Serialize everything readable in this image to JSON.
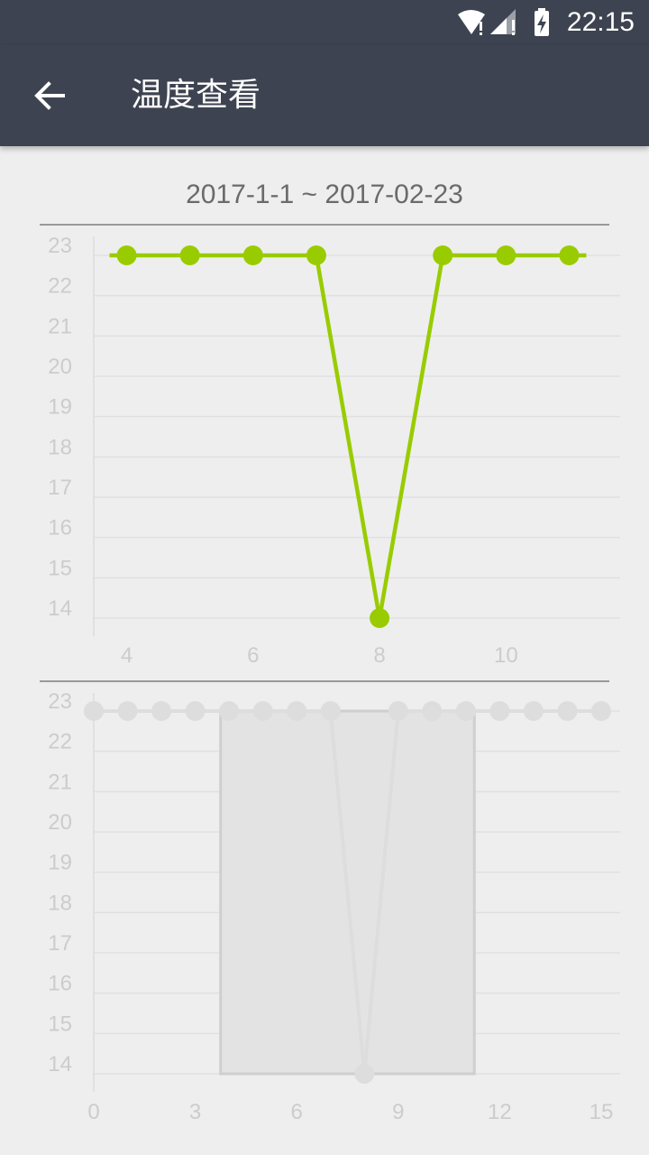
{
  "status_bar": {
    "time": "22:15",
    "icons": [
      "wifi-icon",
      "signal-icon",
      "battery-charging-icon"
    ]
  },
  "toolbar": {
    "back_icon": "arrow-left-icon",
    "title": "温度查看"
  },
  "date_range": "2017-1-1 ~ 2017-02-23",
  "colors": {
    "header": "#3d4350",
    "series": "#99cc00",
    "overview_series": "#dddddd",
    "grid": "#e0e0e0",
    "axis_text": "#cccccc"
  },
  "chart_data": [
    {
      "type": "line",
      "x": [
        4,
        5,
        6,
        7,
        8,
        9,
        10,
        11
      ],
      "values": [
        23,
        23,
        23,
        23,
        14,
        23,
        23,
        23
      ],
      "xlim": [
        3.75,
        11.25
      ],
      "ylim": [
        14,
        23
      ],
      "xticks": [
        4,
        6,
        8,
        10
      ],
      "yticks": [
        14,
        15,
        16,
        17,
        18,
        19,
        20,
        21,
        22,
        23
      ],
      "grid": true
    },
    {
      "type": "line",
      "x": [
        0,
        1,
        2,
        3,
        4,
        5,
        6,
        7,
        8,
        9,
        10,
        11,
        12,
        13,
        14,
        15
      ],
      "values": [
        23,
        23,
        23,
        23,
        23,
        23,
        23,
        23,
        14,
        23,
        23,
        23,
        23,
        23,
        23,
        23
      ],
      "xlim": [
        0,
        15
      ],
      "ylim": [
        14,
        23
      ],
      "xticks": [
        0,
        3,
        6,
        9,
        12,
        15
      ],
      "yticks": [
        14,
        15,
        16,
        17,
        18,
        19,
        20,
        21,
        22,
        23
      ],
      "grid": true,
      "viewport": [
        3.75,
        11.25
      ]
    }
  ]
}
